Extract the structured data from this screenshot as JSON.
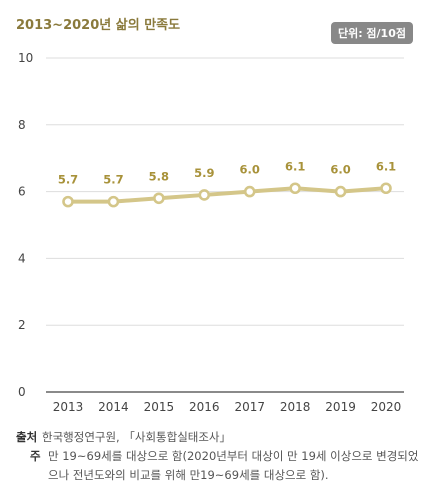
{
  "header": {
    "title": "2013~2020년 삶의 만족도",
    "unit_badge": "단위: 점/10점"
  },
  "chart_data": {
    "type": "line",
    "categories": [
      "2013",
      "2014",
      "2015",
      "2016",
      "2017",
      "2018",
      "2019",
      "2020"
    ],
    "values": [
      5.7,
      5.7,
      5.8,
      5.9,
      6.0,
      6.1,
      6.0,
      6.1
    ],
    "data_labels": [
      "5.7",
      "5.7",
      "5.8",
      "5.9",
      "6.0",
      "6.1",
      "6.0",
      "6.1"
    ],
    "yticks": [
      "0",
      "2",
      "4",
      "6",
      "8",
      "10"
    ],
    "ylim": [
      0,
      10
    ],
    "grid": true,
    "line_color": "#d4c689",
    "label_color": "#a8923a"
  },
  "notes": {
    "source_label": "출처",
    "source_text": "한국행정연구원, 「사회통합실태조사」",
    "footnote_label": "주",
    "footnote_text": "만 19~69세를 대상으로 함(2020년부터 대상이 만 19세 이상으로 변경되었으나 전년도와의 비교를 위해 만19~69세를 대상으로 함)."
  }
}
